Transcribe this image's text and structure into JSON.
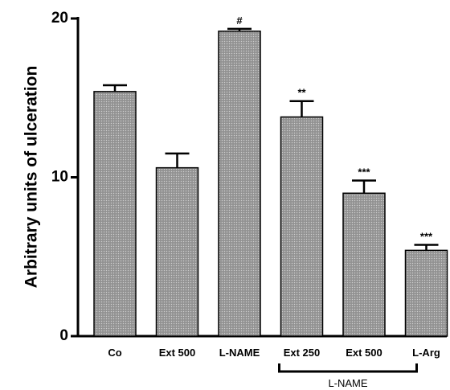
{
  "chart_data": {
    "type": "bar",
    "ylabel": "Arbitrary units of ulceration",
    "ylim": [
      0,
      20
    ],
    "yticks": [
      "0",
      "10",
      "20"
    ],
    "categories": [
      "Co",
      "Ext 500",
      "L-NAME",
      "Ext 250",
      "Ext 500",
      "L-Arg"
    ],
    "values": [
      15.4,
      10.6,
      19.2,
      13.8,
      9.0,
      5.4
    ],
    "errors": [
      0.4,
      0.9,
      0.15,
      1.0,
      0.8,
      0.35
    ],
    "significance": [
      "",
      "",
      "#",
      "**",
      "***",
      "***"
    ],
    "bracket_label": "L-NAME",
    "bar_color": "#a8a8a8"
  }
}
